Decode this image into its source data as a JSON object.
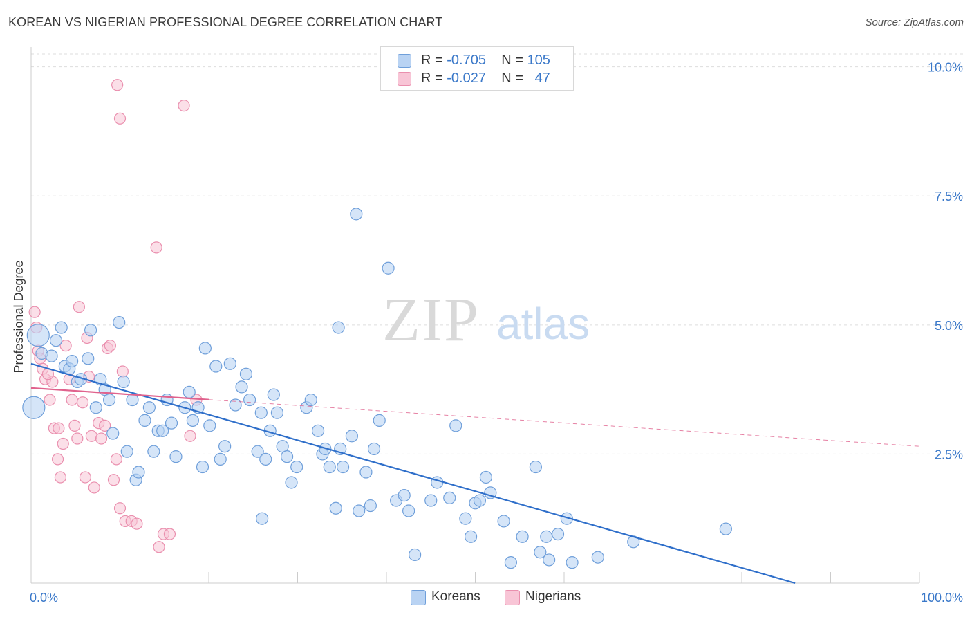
{
  "header": {
    "title": "KOREAN VS NIGERIAN PROFESSIONAL DEGREE CORRELATION CHART",
    "source": "Source: ZipAtlas.com"
  },
  "watermark": {
    "zip": "ZIP",
    "atlas": "atlas"
  },
  "legend_top": {
    "koreans": {
      "r_label": "R =",
      "r_value": "-0.705",
      "n_label": "N =",
      "n_value": "105"
    },
    "nigerians": {
      "r_label": "R =",
      "r_value": "-0.027",
      "n_label": "N =",
      "n_value": "47"
    }
  },
  "legend_bottom": {
    "koreans": "Koreans",
    "nigerians": "Nigerians"
  },
  "colors": {
    "koreans_fill": "#b9d3f3",
    "koreans_stroke": "#6f9fda",
    "koreans_line": "#2f6fca",
    "nigerians_fill": "#f8c5d6",
    "nigerians_stroke": "#ea8fae",
    "nigerians_line": "#e0628d",
    "tick_label": "#3a78c9",
    "grid": "#dddddd"
  },
  "chart_data": {
    "type": "scatter",
    "title": "KOREAN VS NIGERIAN PROFESSIONAL DEGREE CORRELATION CHART",
    "xlabel": "",
    "ylabel": "Professional Degree",
    "xlim": [
      0,
      100
    ],
    "ylim": [
      0,
      10.25
    ],
    "x_tick_labels": [
      {
        "x": 0,
        "label": "0.0%"
      },
      {
        "x": 100,
        "label": "100.0%"
      }
    ],
    "y_ticks": [
      {
        "y": 2.5,
        "label": "2.5%"
      },
      {
        "y": 5.0,
        "label": "5.0%"
      },
      {
        "y": 7.5,
        "label": "7.5%"
      },
      {
        "y": 10.0,
        "label": "10.0%"
      }
    ],
    "grid": true,
    "legend_position": "top-center",
    "series": [
      {
        "name": "Koreans",
        "r": -0.705,
        "n": 105,
        "trend": {
          "x0": 0,
          "y0": 4.25,
          "x1": 86,
          "y1": 0.0,
          "style": "solid"
        },
        "points": [
          [
            0.3,
            3.4
          ],
          [
            0.8,
            4.8
          ],
          [
            1.2,
            4.45
          ],
          [
            2.3,
            4.4
          ],
          [
            2.8,
            4.7
          ],
          [
            3.4,
            4.95
          ],
          [
            3.8,
            4.2
          ],
          [
            4.3,
            4.15
          ],
          [
            4.6,
            4.3
          ],
          [
            5.2,
            3.9
          ],
          [
            5.6,
            3.95
          ],
          [
            6.4,
            4.35
          ],
          [
            6.7,
            4.9
          ],
          [
            7.3,
            3.4
          ],
          [
            7.8,
            3.95
          ],
          [
            8.3,
            3.75
          ],
          [
            8.8,
            3.55
          ],
          [
            9.2,
            2.9
          ],
          [
            9.9,
            5.05
          ],
          [
            10.4,
            3.9
          ],
          [
            10.8,
            2.55
          ],
          [
            11.4,
            3.55
          ],
          [
            11.8,
            2.0
          ],
          [
            12.1,
            2.15
          ],
          [
            12.8,
            3.15
          ],
          [
            13.3,
            3.4
          ],
          [
            13.8,
            2.55
          ],
          [
            14.3,
            2.95
          ],
          [
            14.8,
            2.95
          ],
          [
            15.3,
            3.55
          ],
          [
            15.8,
            3.1
          ],
          [
            16.3,
            2.45
          ],
          [
            17.3,
            3.4
          ],
          [
            17.8,
            3.7
          ],
          [
            18.2,
            3.15
          ],
          [
            18.8,
            3.4
          ],
          [
            19.3,
            2.25
          ],
          [
            19.6,
            4.55
          ],
          [
            20.1,
            3.05
          ],
          [
            20.8,
            4.2
          ],
          [
            21.3,
            2.4
          ],
          [
            21.8,
            2.65
          ],
          [
            22.4,
            4.25
          ],
          [
            23.0,
            3.45
          ],
          [
            23.7,
            3.8
          ],
          [
            24.2,
            4.05
          ],
          [
            24.6,
            3.55
          ],
          [
            25.5,
            2.55
          ],
          [
            25.9,
            3.3
          ],
          [
            26.4,
            2.4
          ],
          [
            26.0,
            1.25
          ],
          [
            26.9,
            2.95
          ],
          [
            27.3,
            3.65
          ],
          [
            27.7,
            3.3
          ],
          [
            28.3,
            2.65
          ],
          [
            28.8,
            2.45
          ],
          [
            29.3,
            1.95
          ],
          [
            29.9,
            2.25
          ],
          [
            31.0,
            3.4
          ],
          [
            31.5,
            3.55
          ],
          [
            32.3,
            2.95
          ],
          [
            32.8,
            2.5
          ],
          [
            33.1,
            2.6
          ],
          [
            33.6,
            2.25
          ],
          [
            34.3,
            1.45
          ],
          [
            34.8,
            2.6
          ],
          [
            34.6,
            4.95
          ],
          [
            35.1,
            2.25
          ],
          [
            36.1,
            2.85
          ],
          [
            36.6,
            7.15
          ],
          [
            36.9,
            1.4
          ],
          [
            37.7,
            2.15
          ],
          [
            38.2,
            1.5
          ],
          [
            38.6,
            2.6
          ],
          [
            39.2,
            3.15
          ],
          [
            40.2,
            6.1
          ],
          [
            41.1,
            1.6
          ],
          [
            42.0,
            1.7
          ],
          [
            42.5,
            1.4
          ],
          [
            43.2,
            0.55
          ],
          [
            45.0,
            1.6
          ],
          [
            45.7,
            1.95
          ],
          [
            47.1,
            1.65
          ],
          [
            47.8,
            3.05
          ],
          [
            48.9,
            1.25
          ],
          [
            49.5,
            0.9
          ],
          [
            50.0,
            1.55
          ],
          [
            50.5,
            1.6
          ],
          [
            51.2,
            2.05
          ],
          [
            51.7,
            1.75
          ],
          [
            53.2,
            1.2
          ],
          [
            54.0,
            0.4
          ],
          [
            55.3,
            0.9
          ],
          [
            56.8,
            2.25
          ],
          [
            57.3,
            0.6
          ],
          [
            58.0,
            0.9
          ],
          [
            58.3,
            0.45
          ],
          [
            59.3,
            0.95
          ],
          [
            60.3,
            1.25
          ],
          [
            60.9,
            0.4
          ],
          [
            63.8,
            0.5
          ],
          [
            67.8,
            0.8
          ],
          [
            78.2,
            1.05
          ]
        ]
      },
      {
        "name": "Nigerians",
        "r": -0.027,
        "n": 47,
        "trend": {
          "x0": 0,
          "y0": 3.78,
          "x1": 100,
          "y1": 2.65,
          "solid_until": 20,
          "style": "solid-then-dashed"
        },
        "points": [
          [
            0.4,
            5.25
          ],
          [
            0.6,
            4.95
          ],
          [
            0.8,
            4.5
          ],
          [
            1.0,
            4.35
          ],
          [
            1.3,
            4.15
          ],
          [
            1.6,
            3.95
          ],
          [
            2.1,
            3.55
          ],
          [
            2.6,
            3.0
          ],
          [
            3.0,
            2.4
          ],
          [
            3.3,
            2.05
          ],
          [
            3.6,
            2.7
          ],
          [
            3.9,
            4.6
          ],
          [
            4.3,
            3.95
          ],
          [
            4.6,
            3.55
          ],
          [
            4.9,
            3.05
          ],
          [
            5.2,
            2.8
          ],
          [
            5.4,
            5.35
          ],
          [
            5.8,
            3.5
          ],
          [
            6.1,
            2.05
          ],
          [
            6.3,
            4.75
          ],
          [
            6.5,
            4.0
          ],
          [
            6.8,
            2.85
          ],
          [
            7.1,
            1.85
          ],
          [
            7.6,
            3.1
          ],
          [
            7.9,
            2.8
          ],
          [
            8.3,
            3.05
          ],
          [
            8.6,
            4.55
          ],
          [
            8.9,
            4.6
          ],
          [
            9.3,
            2.0
          ],
          [
            9.6,
            2.4
          ],
          [
            10.0,
            1.45
          ],
          [
            10.3,
            4.1
          ],
          [
            10.6,
            1.2
          ],
          [
            11.3,
            1.2
          ],
          [
            11.9,
            1.15
          ],
          [
            14.1,
            6.5
          ],
          [
            14.4,
            0.7
          ],
          [
            14.9,
            0.95
          ],
          [
            15.6,
            0.95
          ],
          [
            17.2,
            9.25
          ],
          [
            17.9,
            2.85
          ],
          [
            18.6,
            3.55
          ],
          [
            9.7,
            9.65
          ],
          [
            10.0,
            9.0
          ],
          [
            2.4,
            3.9
          ],
          [
            3.1,
            3.0
          ],
          [
            1.9,
            4.05
          ]
        ]
      }
    ]
  }
}
